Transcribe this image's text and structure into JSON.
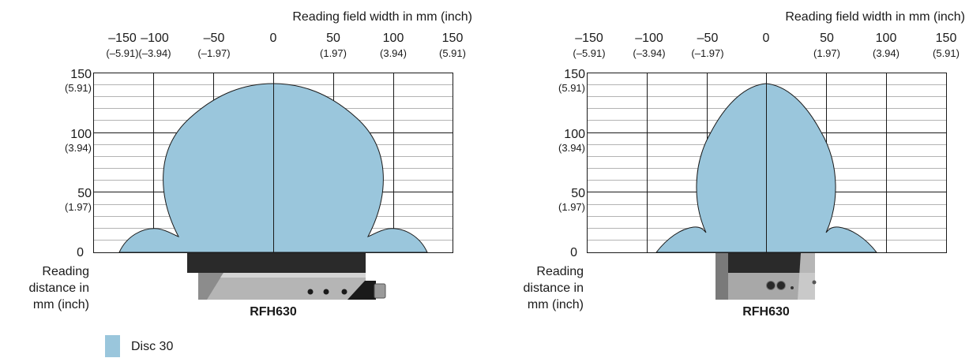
{
  "legend": {
    "label": "Disc 30",
    "color": "#9ac6dc"
  },
  "diagrams": [
    {
      "x_axis_title": "Reading field width in mm (inch)",
      "y_axis_title": [
        "Reading",
        "distance in",
        "mm (inch)"
      ],
      "x_ticks": [
        {
          "value": "–150",
          "sub": "(–5.91)"
        },
        {
          "value": "–100",
          "sub": "(–3.94)"
        },
        {
          "value": "–50",
          "sub": "(–1.97)"
        },
        {
          "value": "0",
          "sub": ""
        },
        {
          "value": "50",
          "sub": "(1.97)"
        },
        {
          "value": "100",
          "sub": "(3.94)"
        },
        {
          "value": "150",
          "sub": "(5.91)"
        }
      ],
      "y_ticks": [
        {
          "value": "150",
          "sub": "(5.91)"
        },
        {
          "value": "100",
          "sub": "(3.94)"
        },
        {
          "value": "50",
          "sub": "(1.97)"
        },
        {
          "value": "0",
          "sub": ""
        }
      ],
      "device_label": "RFH630"
    },
    {
      "x_axis_title": "Reading field width in mm (inch)",
      "y_axis_title": [
        "Reading",
        "distance in",
        "mm (inch)"
      ],
      "x_ticks": [
        {
          "value": "–150",
          "sub": "(–5.91)"
        },
        {
          "value": "–100",
          "sub": "(–3.94)"
        },
        {
          "value": "–50",
          "sub": "(–1.97)"
        },
        {
          "value": "0",
          "sub": ""
        },
        {
          "value": "50",
          "sub": "(1.97)"
        },
        {
          "value": "100",
          "sub": "(3.94)"
        },
        {
          "value": "150",
          "sub": "(5.91)"
        }
      ],
      "y_ticks": [
        {
          "value": "150",
          "sub": "(5.91)"
        },
        {
          "value": "100",
          "sub": "(3.94)"
        },
        {
          "value": "50",
          "sub": "(1.97)"
        },
        {
          "value": "0",
          "sub": ""
        }
      ],
      "device_label": "RFH630"
    }
  ]
}
